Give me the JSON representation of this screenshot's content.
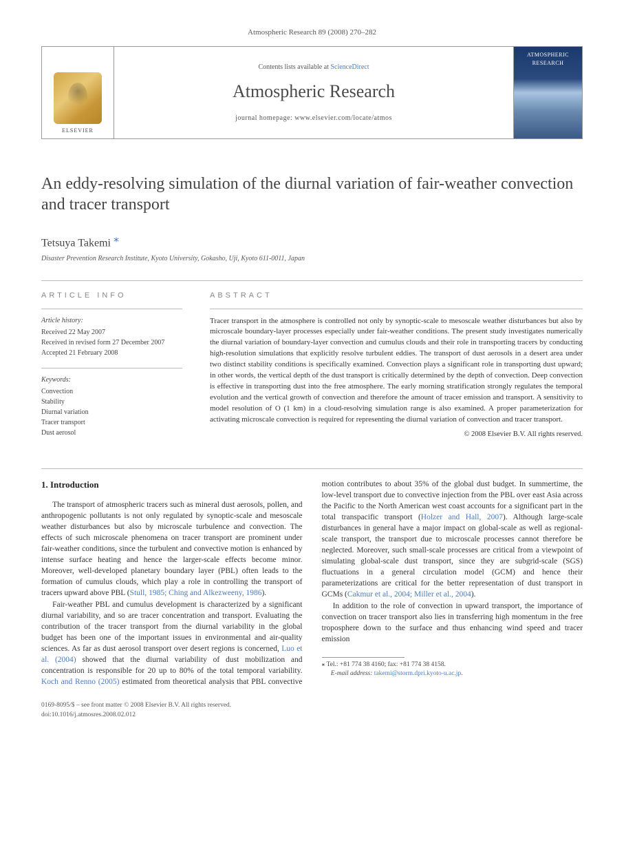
{
  "journal_ref": "Atmospheric Research 89 (2008) 270–282",
  "masthead": {
    "contents_line_prefix": "Contents lists available at ",
    "contents_line_link": "ScienceDirect",
    "journal_title": "Atmospheric Research",
    "homepage_line": "journal homepage: www.elsevier.com/locate/atmos",
    "publisher_word": "ELSEVIER",
    "cover_title": "ATMOSPHERIC RESEARCH"
  },
  "article": {
    "title": "An eddy-resolving simulation of the diurnal variation of fair-weather convection and tracer transport",
    "author": "Tetsuya Takemi",
    "author_mark": "⁎",
    "affiliation": "Disaster Prevention Research Institute, Kyoto University, Gokasho, Uji, Kyoto 611-0011, Japan"
  },
  "info": {
    "heading": "ARTICLE INFO",
    "history_label": "Article history:",
    "history_lines": [
      "Received 22 May 2007",
      "Received in revised form 27 December 2007",
      "Accepted 21 February 2008"
    ],
    "keywords_label": "Keywords:",
    "keywords": [
      "Convection",
      "Stability",
      "Diurnal variation",
      "Tracer transport",
      "Dust aerosol"
    ]
  },
  "abstract": {
    "heading": "ABSTRACT",
    "text": "Tracer transport in the atmosphere is controlled not only by synoptic-scale to mesoscale weather disturbances but also by microscale boundary-layer processes especially under fair-weather conditions. The present study investigates numerically the diurnal variation of boundary-layer convection and cumulus clouds and their role in transporting tracers by conducting high-resolution simulations that explicitly resolve turbulent eddies. The transport of dust aerosols in a desert area under two distinct stability conditions is specifically examined. Convection plays a significant role in transporting dust upward; in other words, the vertical depth of the dust transport is critically determined by the depth of convection. Deep convection is effective in transporting dust into the free atmosphere. The early morning stratification strongly regulates the temporal evolution and the vertical growth of convection and therefore the amount of tracer emission and transport. A sensitivity to model resolution of O (1 km) in a cloud-resolving simulation range is also examined. A proper parameterization for activating microscale convection is required for representing the diurnal variation of convection and tracer transport.",
    "copyright": "© 2008 Elsevier B.V. All rights reserved."
  },
  "body": {
    "section_heading": "1. Introduction",
    "p1_a": "The transport of atmospheric tracers such as mineral dust aerosols, pollen, and anthropogenic pollutants is not only regulated by synoptic-scale and mesoscale weather disturbances but also by microscale turbulence and convection. The effects of such microscale phenomena on tracer transport are prominent under fair-weather conditions, since the turbulent and convective motion is enhanced by intense surface heating and hence the larger-scale effects become minor. Moreover, well-developed planetary boundary layer (PBL) often leads to the formation of cumulus clouds, which play a role in controlling the transport of tracers upward above PBL (",
    "p1_cite": "Stull, 1985; Ching and Alkezweeny, 1986",
    "p1_b": ").",
    "p2_a": "Fair-weather PBL and cumulus development is characterized by a significant diurnal variability, and so are tracer concentration and transport. Evaluating the contribution of the tracer transport from the diurnal variability in the global budget has been one of the important issues in environmental and air-quality sciences. As far as dust aerosol transport over desert regions is concerned, ",
    "p2_cite1": "Luo et al. (2004)",
    "p2_b": " showed that the diurnal variability of dust mobilization and concentration is responsible for 20 up to 80% of the total temporal variability. ",
    "p2_cite2": "Koch and Renno (2005)",
    "p2_c": " estimated from theoretical analysis that PBL convective motion contributes to about 35% of the global dust budget. In summertime, the low-level transport due to convective injection from the PBL over east Asia across the Pacific to the North American west coast accounts for a significant part in the total transpacific transport (",
    "p2_cite3": "Holzer and Hall, 2007",
    "p2_d": "). Although large-scale disturbances in general have a major impact on global-scale as well as regional-scale transport, the transport due to microscale processes cannot therefore be neglected. Moreover, such small-scale processes are critical from a viewpoint of simulating global-scale dust transport, since they are subgrid-scale (SGS) fluctuations in a general circulation model (GCM) and hence their parameterizations are critical for the better representation of dust transport in GCMs (",
    "p2_cite4": "Cakmur et al., 2004; Miller et al., 2004",
    "p2_e": ").",
    "p3": "In addition to the role of convection in upward transport, the importance of convection on tracer transport also lies in transferring high momentum in the free troposphere down to the surface and thus enhancing wind speed and tracer emission"
  },
  "footnote": {
    "star": "⁎",
    "tel": "Tel.: +81 774 38 4160; fax: +81 774 38 4158.",
    "email_label": "E-mail address:",
    "email": "takemi@storm.dpri.kyoto-u.ac.jp",
    "email_tail": "."
  },
  "footer": {
    "line1": "0169-8095/$ – see front matter © 2008 Elsevier B.V. All rights reserved.",
    "line2": "doi:10.1016/j.atmosres.2008.02.012"
  }
}
